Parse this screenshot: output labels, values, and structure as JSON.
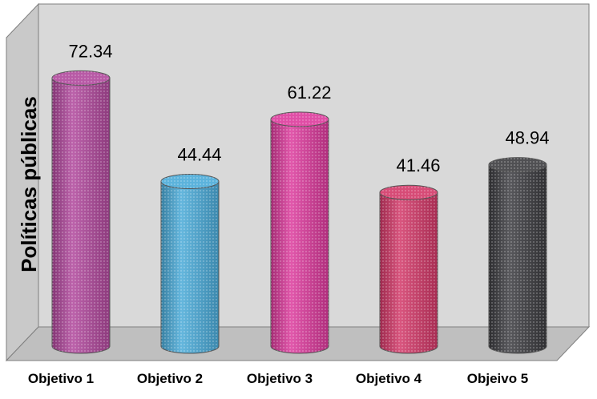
{
  "chart_data": {
    "type": "bar",
    "style": "3d-cylinder",
    "categories": [
      "Objetivo 1",
      "Objetivo 2",
      "Objetivo 3",
      "Objetivo 4",
      "Objeivo 5"
    ],
    "values": [
      72.34,
      44.44,
      61.22,
      41.46,
      48.94
    ],
    "value_labels": [
      "72.34",
      "44.44",
      "61.22",
      "41.46",
      "48.94"
    ],
    "ylabel": "Políticas públicas",
    "xlabel": "",
    "title": "",
    "ylim": [
      0,
      80
    ],
    "grid": false,
    "legend": "none",
    "colors": [
      "#b0489c",
      "#4aaad8",
      "#dc3a9c",
      "#d23868",
      "#3c3c40"
    ],
    "wall_color": "#d9d9d9",
    "floor_color": "#bfbfbf"
  }
}
